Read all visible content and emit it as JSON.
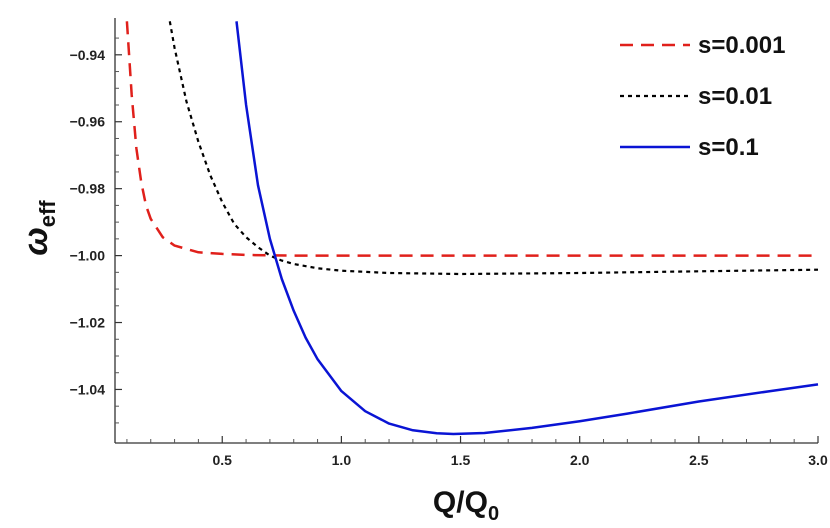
{
  "chart_data": {
    "type": "line",
    "title": "",
    "xlabel": {
      "main": "Q/Q",
      "sub": "0"
    },
    "ylabel": {
      "main": "ω",
      "sub": "eff"
    },
    "xlim": [
      0.05,
      3.0
    ],
    "ylim": [
      -1.056,
      -0.929
    ],
    "xticks": [
      0.5,
      1.0,
      1.5,
      2.0,
      2.5,
      3.0
    ],
    "xtick_labels": [
      "0.5",
      "1.0",
      "1.5",
      "2.0",
      "2.5",
      "3.0"
    ],
    "yticks": [
      -0.94,
      -0.96,
      -0.98,
      -1.0,
      -1.02,
      -1.04
    ],
    "ytick_labels": [
      "−0.94",
      "−0.96",
      "−0.98",
      "−1.00",
      "−1.02",
      "−1.04"
    ],
    "grid": false,
    "legend_position": "top-right",
    "series": [
      {
        "name": "s=0.001",
        "color": "#e0201b",
        "dash": "dashed",
        "x": [
          0.1,
          0.12,
          0.14,
          0.16,
          0.18,
          0.2,
          0.25,
          0.3,
          0.4,
          0.5,
          0.6,
          0.7,
          0.8,
          1.0,
          1.5,
          2.0,
          2.5,
          3.0
        ],
        "y": [
          -0.93,
          -0.952,
          -0.968,
          -0.978,
          -0.985,
          -0.989,
          -0.9945,
          -0.997,
          -0.999,
          -0.9995,
          -0.9998,
          -0.99995,
          -1.0,
          -1.0,
          -1.0,
          -1.0,
          -1.0,
          -1.0
        ]
      },
      {
        "name": "s=0.01",
        "color": "#000000",
        "dash": "dotted",
        "x": [
          0.28,
          0.3,
          0.35,
          0.4,
          0.45,
          0.5,
          0.55,
          0.6,
          0.65,
          0.7,
          0.75,
          0.8,
          0.9,
          1.0,
          1.2,
          1.5,
          2.0,
          2.5,
          3.0
        ],
        "y": [
          -0.93,
          -0.938,
          -0.954,
          -0.966,
          -0.976,
          -0.984,
          -0.9905,
          -0.9945,
          -0.9975,
          -1.0,
          -1.0015,
          -1.0025,
          -1.0038,
          -1.0045,
          -1.0052,
          -1.0055,
          -1.0052,
          -1.0047,
          -1.0042
        ]
      },
      {
        "name": "s=0.1",
        "color": "#0a14d4",
        "dash": "solid",
        "x": [
          0.56,
          0.6,
          0.65,
          0.7,
          0.75,
          0.8,
          0.85,
          0.9,
          1.0,
          1.1,
          1.2,
          1.3,
          1.4,
          1.47,
          1.6,
          1.8,
          2.0,
          2.2,
          2.5,
          2.8,
          3.0
        ],
        "y": [
          -0.93,
          -0.955,
          -0.979,
          -0.995,
          -1.007,
          -1.0165,
          -1.0245,
          -1.031,
          -1.0405,
          -1.0465,
          -1.0502,
          -1.0522,
          -1.0531,
          -1.0533,
          -1.053,
          -1.0515,
          -1.0495,
          -1.0472,
          -1.0436,
          -1.0405,
          -1.0385
        ]
      }
    ]
  }
}
